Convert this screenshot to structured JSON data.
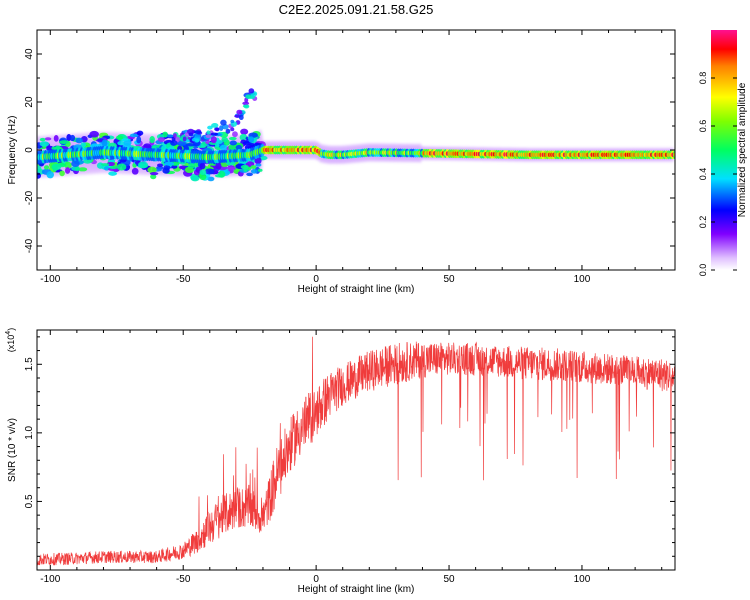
{
  "title": "C2E2.2025.091.21.58.G25",
  "chart_data": [
    {
      "type": "heatmap",
      "xlabel": "Height of straight line (km)",
      "ylabel": "Frequency (Hz)",
      "xlim": [
        -105,
        135
      ],
      "ylim": [
        -50,
        50
      ],
      "xticks": [
        -100,
        -50,
        0,
        50,
        100
      ],
      "yticks": [
        -40,
        -20,
        0,
        20,
        40
      ],
      "colorbar": {
        "label": "Normalized spectral amplitude",
        "ticks": [
          0.0,
          0.2,
          0.4,
          0.6,
          0.8
        ],
        "range": [
          0,
          1
        ]
      },
      "description_series": [
        {
          "name": "main_band_center_hz",
          "x": [
            -105,
            -80,
            -60,
            -40,
            -25,
            -20,
            -10,
            0,
            2,
            5,
            10,
            20,
            50,
            80,
            100,
            135
          ],
          "y": [
            -3,
            -1,
            -2,
            -3,
            -2,
            0,
            0,
            0,
            -1.5,
            -2,
            -2,
            -1,
            -1.5,
            -2,
            -2,
            -2
          ]
        },
        {
          "name": "drift_track_hz",
          "x": [
            -50,
            -40,
            -35,
            -30,
            -27,
            -25
          ],
          "y": [
            5,
            7,
            9,
            12,
            18,
            23
          ]
        }
      ],
      "grid": false
    },
    {
      "type": "line",
      "xlabel": "Height of straight line (km)",
      "ylabel": "SNR (10 * v/v)",
      "y_multiplier_label": "(x10",
      "y_multiplier_exp": "4",
      "xlim": [
        -105,
        135
      ],
      "ylim": [
        0,
        1.75
      ],
      "xticks": [
        -100,
        -50,
        0,
        50,
        100
      ],
      "yticks": [
        0.5,
        1.0,
        1.5
      ],
      "envelope": {
        "x": [
          -105,
          -90,
          -80,
          -70,
          -60,
          -50,
          -45,
          -40,
          -35,
          -30,
          -25,
          -20,
          -15,
          -10,
          -5,
          0,
          5,
          10,
          20,
          30,
          40,
          50,
          60,
          70,
          80,
          90,
          100,
          110,
          120,
          130,
          135
        ],
        "upper": [
          0.12,
          0.13,
          0.14,
          0.14,
          0.14,
          0.2,
          0.3,
          0.45,
          0.55,
          0.6,
          0.62,
          0.5,
          0.9,
          1.1,
          1.25,
          1.35,
          1.45,
          1.5,
          1.6,
          1.66,
          1.67,
          1.66,
          1.66,
          1.64,
          1.63,
          1.62,
          1.6,
          1.58,
          1.56,
          1.55,
          1.52
        ],
        "lower": [
          0.03,
          0.04,
          0.05,
          0.05,
          0.05,
          0.08,
          0.12,
          0.18,
          0.25,
          0.3,
          0.3,
          0.25,
          0.45,
          0.7,
          0.85,
          0.95,
          1.1,
          1.2,
          1.3,
          1.35,
          1.4,
          1.42,
          1.42,
          1.4,
          1.38,
          1.38,
          1.36,
          1.35,
          1.33,
          1.3,
          1.3
        ]
      },
      "color": "#f03c3c",
      "grid": false
    }
  ]
}
